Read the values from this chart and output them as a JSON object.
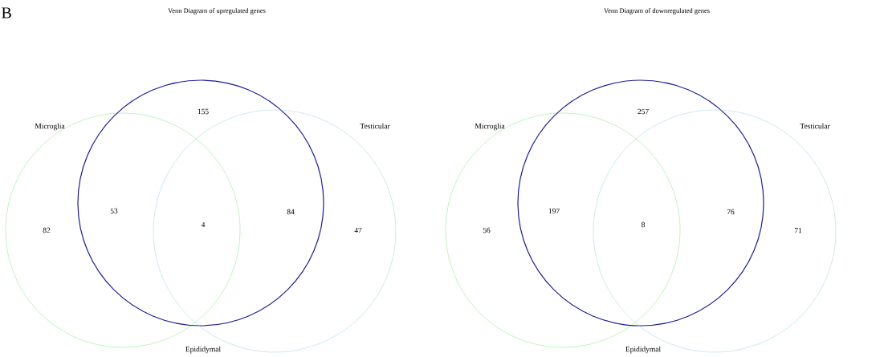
{
  "chart_data": [
    {
      "type": "other",
      "title": "Venn Diagram of upregulated genes",
      "categories": [
        "Microglia",
        "Epididymal",
        "Testicular"
      ],
      "colors": [
        "#90ee90",
        "#1c1c96",
        "#add8e6"
      ],
      "values": [
        82,
        155,
        47
      ],
      "data_labels": true,
      "annotations": [
        "53",
        "4",
        "84",
        "B"
      ]
    },
    {
      "type": "other",
      "title": "Venn Diagram of downregulated genes",
      "categories": [
        "Microglia",
        "Epididymal",
        "Testicular"
      ],
      "colors": [
        "#90ee90",
        "#1c1c96",
        "#add8e6"
      ],
      "values": [
        56,
        257,
        71
      ],
      "data_labels": true,
      "annotations": [
        "197",
        "8",
        "76"
      ]
    }
  ]
}
